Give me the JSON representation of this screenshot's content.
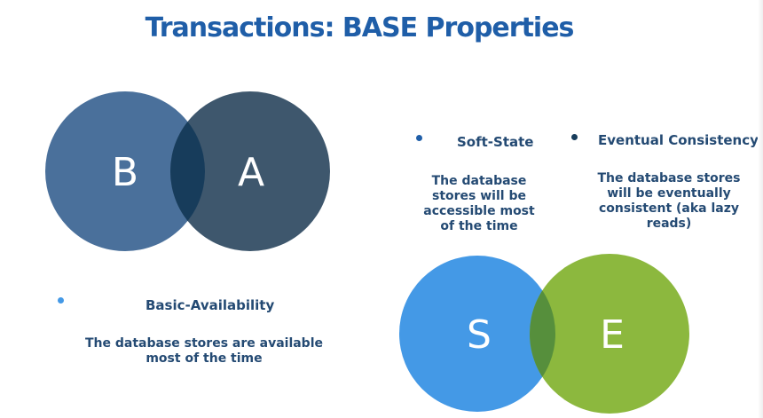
{
  "slide": {
    "title": "Transactions: BASE Properties"
  },
  "venn_ba": {
    "left_letter": "B",
    "right_letter": "A",
    "left_color": "#4a709b",
    "right_color": "#3e576d",
    "overlap_color": "#173c5b"
  },
  "venn_se": {
    "left_letter": "S",
    "right_letter": "E",
    "left_color": "#4499e6",
    "right_color": "#8cb83e",
    "overlap_color": "#568f3c"
  },
  "basic_availability": {
    "heading": "Basic-Availability",
    "description": "The database stores are available most of the time",
    "bullet_color": "#4499e6"
  },
  "soft_state": {
    "heading": "Soft-State",
    "description": "The database stores will be accessible most of the time",
    "bullet_color": "#1f5ea8"
  },
  "eventual_consistency": {
    "heading": "Eventual Consistency",
    "description": "The database stores will be eventually consistent (aka lazy reads)",
    "bullet_color": "#173c5b"
  }
}
